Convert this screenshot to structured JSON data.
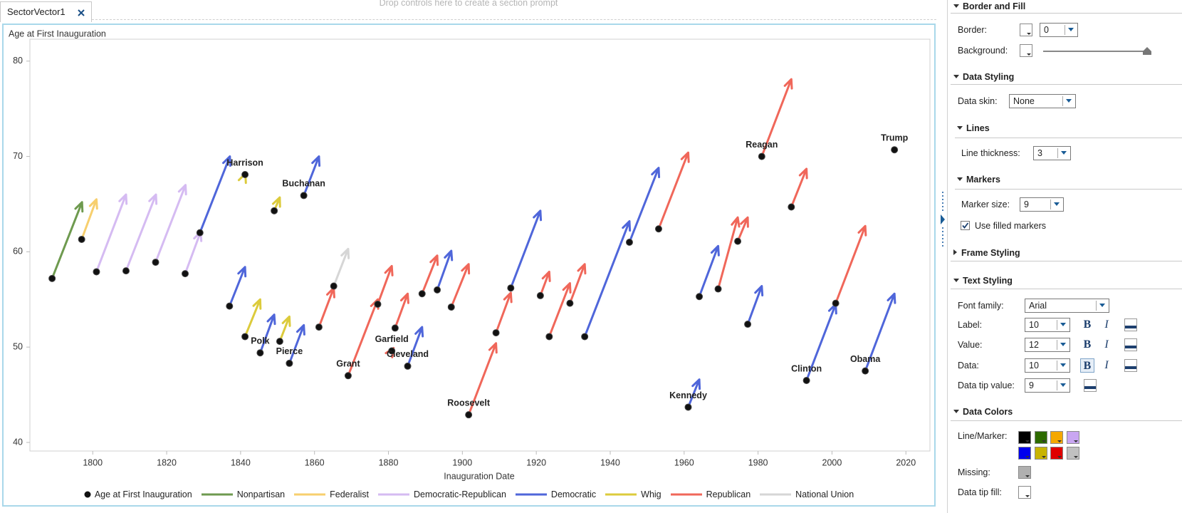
{
  "tab": {
    "title": "SectorVector1"
  },
  "drop_zone": "Drop controls here to create a section prompt",
  "chart_data": {
    "type": "vector",
    "title": "Age at First Inauguration",
    "x_label": "Inauguration Date",
    "series_name": "Age at First Inauguration",
    "marker_color": "#111111",
    "groups": [
      {
        "name": "Nonpartisan",
        "color": "#6e9a4f"
      },
      {
        "name": "Federalist",
        "color": "#f7cf6e"
      },
      {
        "name": "Democratic-Republican",
        "color": "#d5bbf2"
      },
      {
        "name": "Democratic",
        "color": "#4f66da"
      },
      {
        "name": "Whig",
        "color": "#dccb3c"
      },
      {
        "name": "Republican",
        "color": "#f0675a"
      },
      {
        "name": "National Union",
        "color": "#d6d6d6"
      }
    ],
    "x": [
      1789,
      1797,
      1801,
      1809,
      1817,
      1825,
      1829,
      1837,
      1841.2,
      1841.2,
      1845.3,
      1849.1,
      1850.6,
      1853.2,
      1857.1,
      1861.2,
      1865.2,
      1869.1,
      1877.1,
      1880.9,
      1881.8,
      1885.2,
      1889.1,
      1893.2,
      1897,
      1901.7,
      1909.1,
      1913.1,
      1921.1,
      1923.5,
      1929.1,
      1933.1,
      1945.2,
      1953.1,
      1961.1,
      1964.1,
      1969.2,
      1974.5,
      1977.2,
      1981,
      1989,
      1993.1,
      2001,
      2009,
      2016.9
    ],
    "values": [
      57.2,
      61.3,
      57.9,
      58,
      58.9,
      57.7,
      62,
      54.3,
      68.1,
      51.1,
      49.4,
      64.3,
      50.6,
      48.3,
      65.9,
      52.1,
      56.4,
      47,
      54.5,
      49.6,
      52,
      48,
      55.6,
      56,
      54.2,
      42.9,
      51.5,
      56.2,
      55.4,
      51.1,
      54.6,
      51.1,
      61,
      62.4,
      43.7,
      55.3,
      56.1,
      61.1,
      52.4,
      70,
      64.7,
      46.5,
      54.6,
      47.5,
      70.7
    ],
    "x_end": [
      1797.1,
      1801,
      1809,
      1817.1,
      1825.1,
      1829.2,
      1837.1,
      1841.2,
      1841.3,
      1845.3,
      1849.1,
      1850.6,
      1853.2,
      1857.1,
      1861.2,
      1865.2,
      1869.1,
      1877.1,
      1880.9,
      1881.4,
      1885.2,
      1889.1,
      1893.2,
      1897,
      1901.7,
      1909.1,
      1913.1,
      1921.1,
      1923.5,
      1929.1,
      1933.1,
      1945.2,
      1953.1,
      1961.1,
      1964.1,
      1969.2,
      1974.5,
      1977.2,
      1981,
      1989,
      1993.1,
      2001,
      2009,
      2016.9,
      null
    ],
    "y_end": [
      65.2,
      65.5,
      66,
      66,
      67,
      62.1,
      70,
      58.4,
      68.2,
      55,
      53.4,
      65.7,
      53.2,
      52.3,
      70,
      56.2,
      60.3,
      55,
      58.5,
      49.9,
      55.6,
      52.1,
      59.6,
      60.1,
      58.7,
      50.4,
      55.7,
      64.3,
      57.9,
      56.7,
      58.7,
      63.2,
      68.8,
      70.4,
      46.6,
      60.6,
      63.6,
      63.6,
      56.4,
      78.1,
      68.7,
      54.5,
      62.7,
      55.6,
      null
    ],
    "group": [
      0,
      1,
      2,
      2,
      2,
      2,
      3,
      3,
      4,
      4,
      3,
      4,
      4,
      3,
      3,
      5,
      6,
      5,
      5,
      5,
      5,
      3,
      5,
      3,
      5,
      5,
      5,
      3,
      5,
      5,
      5,
      3,
      3,
      5,
      3,
      3,
      5,
      5,
      3,
      5,
      5,
      3,
      5,
      3,
      5
    ],
    "labels": [
      null,
      null,
      null,
      null,
      null,
      null,
      null,
      null,
      "Harrison",
      null,
      "Polk",
      null,
      null,
      "Pierce",
      "Buchanan",
      null,
      null,
      "Grant",
      null,
      "Garfield",
      null,
      "Cleveland",
      null,
      null,
      null,
      "Roosevelt",
      null,
      null,
      null,
      null,
      null,
      null,
      null,
      null,
      "Kennedy",
      null,
      null,
      null,
      null,
      "Reagan",
      null,
      "Clinton",
      null,
      "Obama",
      "Trump"
    ],
    "xlim": [
      1783,
      2026.5
    ],
    "ylim": [
      39.1,
      82.3
    ],
    "xticks": [
      1800,
      1820,
      1840,
      1860,
      1880,
      1900,
      1920,
      1940,
      1960,
      1980,
      2000,
      2020
    ],
    "yticks": [
      40,
      50,
      60,
      70,
      80
    ],
    "grid": false
  },
  "panel": {
    "border_fill": {
      "title": "Border and Fill",
      "border_label": "Border:",
      "border_value": "0",
      "border_color": "#ffffff",
      "background_label": "Background:",
      "background_color": "#ffffff"
    },
    "data_styling": {
      "title": "Data Styling",
      "skin_label": "Data skin:",
      "skin_value": "None"
    },
    "lines": {
      "title": "Lines",
      "thickness_label": "Line thickness:",
      "thickness_value": "3"
    },
    "markers": {
      "title": "Markers",
      "size_label": "Marker size:",
      "size_value": "9",
      "filled_label": "Use filled markers",
      "filled": true
    },
    "frame_styling": {
      "title": "Frame Styling"
    },
    "text_styling": {
      "title": "Text Styling",
      "font_label": "Font family:",
      "font_value": "Arial",
      "bold": "B",
      "italic": "I",
      "rows": [
        {
          "label": "Label:",
          "value": "10"
        },
        {
          "label": "Value:",
          "value": "12"
        },
        {
          "label": "Data:",
          "value": "10"
        },
        {
          "label": "Data tip value:",
          "value": "9"
        }
      ]
    },
    "data_colors": {
      "title": "Data Colors",
      "line_marker_label": "Line/Marker:",
      "swatches": [
        "#000000",
        "#2e6b00",
        "#f5a800",
        "#c9a6f2",
        "#0000ee",
        "#c8b400",
        "#e00000",
        "#c0c0c0"
      ],
      "missing_label": "Missing:",
      "missing_color": "#b0b0b0",
      "tip_fill_label": "Data tip fill:",
      "tip_fill_color": "#ffffff"
    }
  }
}
